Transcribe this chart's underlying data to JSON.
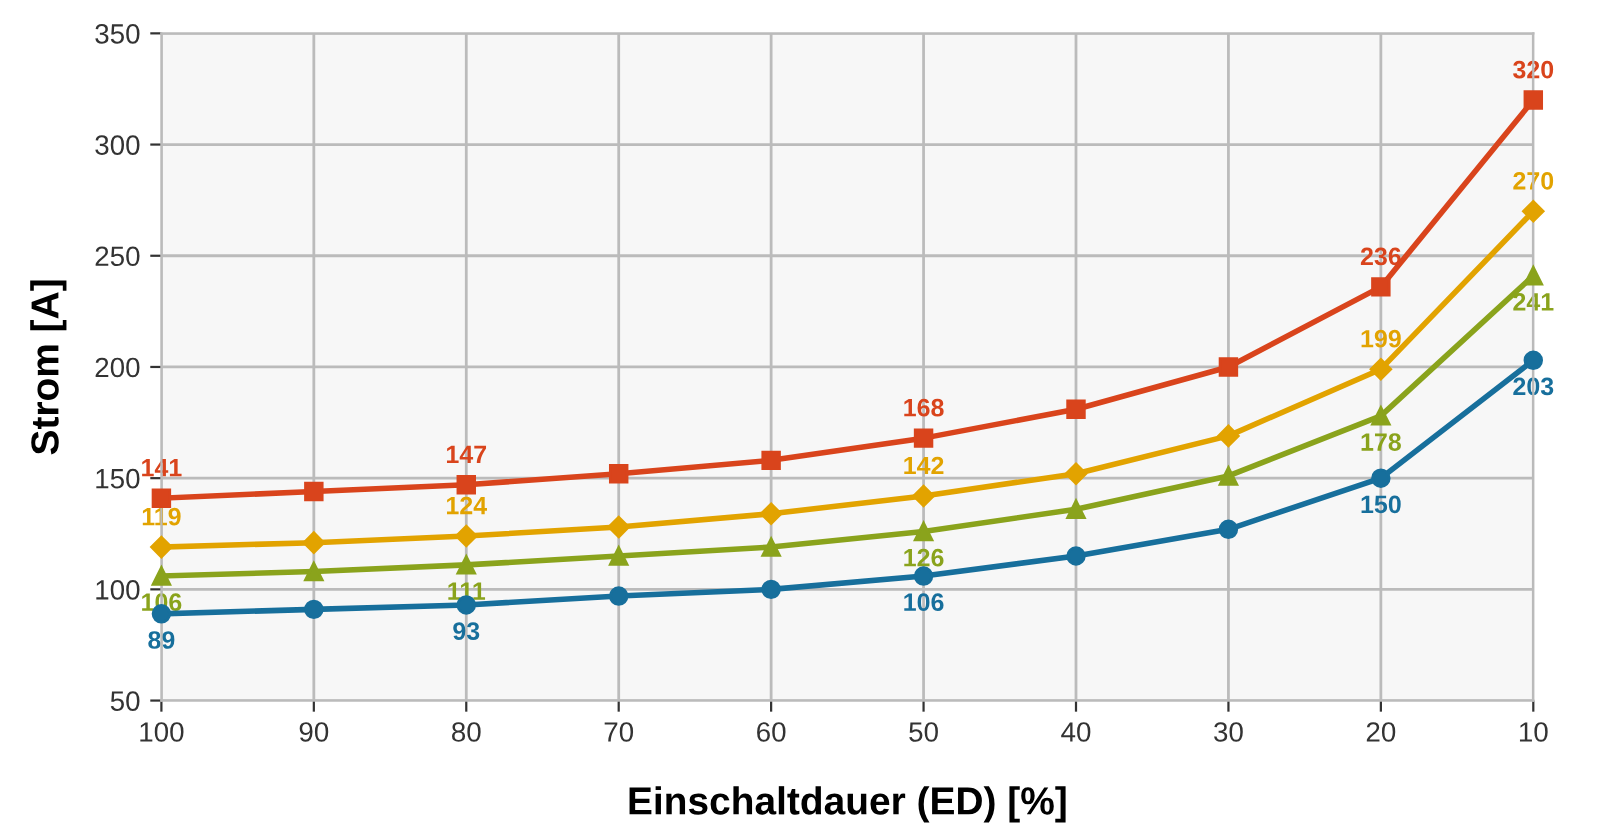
{
  "chart_data": {
    "type": "line",
    "xlabel": "Einschaltdauer (ED) [%]",
    "ylabel": "Strom [A]",
    "x": [
      100,
      90,
      80,
      70,
      60,
      50,
      40,
      30,
      20,
      10
    ],
    "xlim": [
      100,
      10
    ],
    "xticks": [
      100,
      90,
      80,
      70,
      60,
      50,
      40,
      30,
      20,
      10
    ],
    "ylim": [
      50,
      350
    ],
    "yticks": [
      50,
      100,
      150,
      200,
      250,
      300,
      350
    ],
    "grid": true,
    "line_style": "solid",
    "series": [
      {
        "color": "#d9441c",
        "marker": "square",
        "values": [
          141,
          144,
          147,
          152,
          158,
          168,
          181,
          200,
          236,
          320
        ],
        "value_labels": [
          "141",
          null,
          "147",
          null,
          null,
          "168",
          null,
          null,
          "236",
          "320"
        ]
      },
      {
        "color": "#e2a300",
        "marker": "diamond",
        "values": [
          119,
          121,
          124,
          128,
          134,
          142,
          152,
          169,
          199,
          270
        ],
        "value_labels": [
          "119",
          null,
          "124",
          null,
          null,
          "142",
          null,
          null,
          "199",
          "270"
        ]
      },
      {
        "color": "#8aa31c",
        "marker": "triangle",
        "values": [
          106,
          108,
          111,
          115,
          119,
          126,
          136,
          151,
          178,
          241
        ],
        "value_labels": [
          "106",
          null,
          "111",
          null,
          null,
          "126",
          null,
          null,
          "178",
          "241"
        ]
      },
      {
        "color": "#176f9c",
        "marker": "circle",
        "values": [
          89,
          91,
          93,
          97,
          100,
          106,
          115,
          127,
          150,
          203
        ],
        "value_labels": [
          "89",
          null,
          "93",
          null,
          null,
          "106",
          null,
          null,
          "150",
          "203"
        ]
      }
    ]
  }
}
